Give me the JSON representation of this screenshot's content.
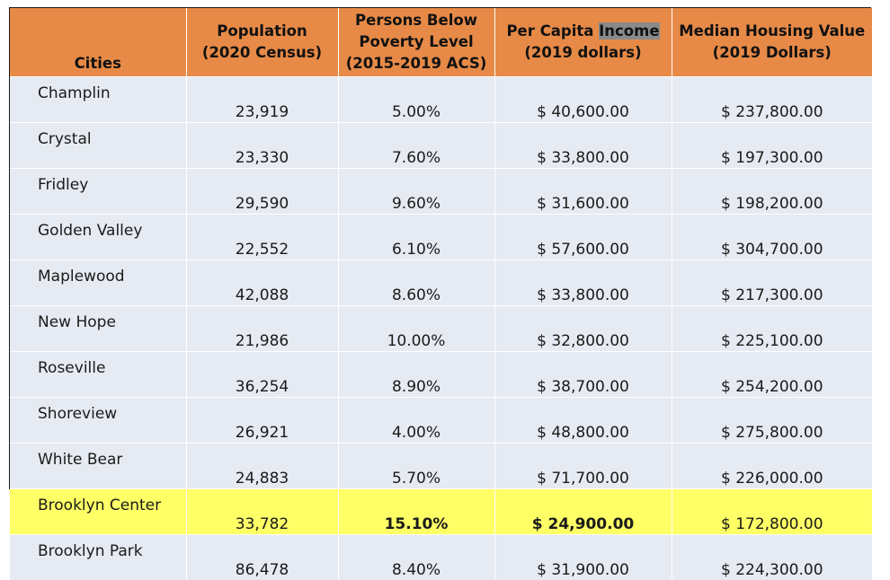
{
  "headers": {
    "cities": "Cities",
    "population": "Population (2020 Census)",
    "poverty": "Persons Below Poverty Level (2015-2019 ACS)",
    "income_prefix": "Per Capita ",
    "income_highlight": "Income",
    "income_suffix": "(2019 dollars)",
    "housing": "Median Housing Value (2019 Dollars)"
  },
  "rows": [
    {
      "city": "Champlin",
      "population": "23,919",
      "poverty": "5.00%",
      "income": "$ 40,600.00",
      "housing": "$ 237,800.00"
    },
    {
      "city": "Crystal",
      "population": "23,330",
      "poverty": "7.60%",
      "income": "$ 33,800.00",
      "housing": "$ 197,300.00"
    },
    {
      "city": "Fridley",
      "population": "29,590",
      "poverty": "9.60%",
      "income": "$ 31,600.00",
      "housing": "$ 198,200.00"
    },
    {
      "city": "Golden Valley",
      "population": "22,552",
      "poverty": "6.10%",
      "income": "$ 57,600.00",
      "housing": "$ 304,700.00"
    },
    {
      "city": "Maplewood",
      "population": "42,088",
      "poverty": "8.60%",
      "income": "$ 33,800.00",
      "housing": "$ 217,300.00"
    },
    {
      "city": "New Hope",
      "population": "21,986",
      "poverty": "10.00%",
      "income": "$ 32,800.00",
      "housing": "$ 225,100.00"
    },
    {
      "city": "Roseville",
      "population": "36,254",
      "poverty": "8.90%",
      "income": "$ 38,700.00",
      "housing": "$ 254,200.00"
    },
    {
      "city": "Shoreview",
      "population": "26,921",
      "poverty": "4.00%",
      "income": "$ 48,800.00",
      "housing": "$ 275,800.00"
    },
    {
      "city": "White Bear",
      "population": "24,883",
      "poverty": "5.70%",
      "income": "$ 71,700.00",
      "housing": "$ 226,000.00"
    },
    {
      "city": "Brooklyn Center",
      "population": "33,782",
      "poverty": "15.10%",
      "income": "$ 24,900.00",
      "housing": "$ 172,800.00"
    },
    {
      "city": "Brooklyn Park",
      "population": "86,478",
      "poverty": "8.40%",
      "income": "$ 31,900.00",
      "housing": "$ 224,300.00"
    }
  ],
  "colors": {
    "header_bg": "#e78a47",
    "row_bg": "#e6eaf2",
    "highlight_row_bg": "#ffff66"
  }
}
